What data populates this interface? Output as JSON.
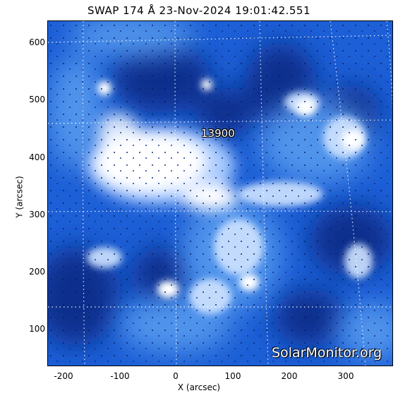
{
  "title": "SWAP  174 Å 23-Nov-2024 19:01:42.551",
  "axes": {
    "xlabel": "X (arcsec)",
    "ylabel": "Y (arcsec)",
    "x_ticks": [
      "-200",
      "-100",
      "0",
      "100",
      "200",
      "300"
    ],
    "y_ticks": [
      "100",
      "200",
      "300",
      "400",
      "500",
      "600"
    ]
  },
  "region_label": "13900",
  "watermark": "SolarMonitor.org",
  "colors": {
    "background_blue": "#1c5fd6",
    "dark_blue": "#0a2f8c",
    "bright": "#ffffff",
    "grid": "#ffffff"
  }
}
